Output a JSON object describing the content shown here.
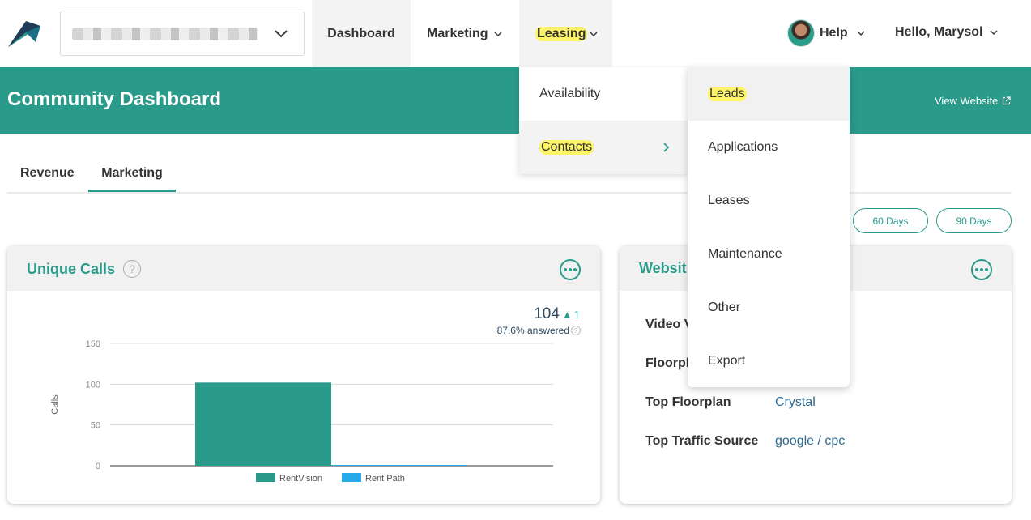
{
  "nav": {
    "dashboard": "Dashboard",
    "marketing": "Marketing",
    "leasing": "Leasing",
    "help": "Help",
    "hello": "Hello, Marysol"
  },
  "banner": {
    "title": "Community Dashboard",
    "view_website": "View Website"
  },
  "tabs": {
    "revenue": "Revenue",
    "marketing": "Marketing"
  },
  "ranges": {
    "d60": "60 Days",
    "d90": "90 Days"
  },
  "calls_card": {
    "title": "Unique Calls",
    "total": "104",
    "delta": "1",
    "answered": "87.6% answered"
  },
  "website_card": {
    "title": "Websit",
    "rows": [
      {
        "label": "Video V",
        "value": ""
      },
      {
        "label": "Floorpl",
        "value": ""
      },
      {
        "label": "Top Floorplan",
        "value": "Crystal"
      },
      {
        "label": "Top Traffic Source",
        "value": "google / cpc"
      }
    ]
  },
  "leasing_menu": {
    "items": [
      "Availability",
      "Contacts"
    ]
  },
  "contacts_menu": {
    "items": [
      "Leads",
      "Applications",
      "Leases",
      "Maintenance",
      "Other",
      "Export"
    ]
  },
  "colors": {
    "brand": "#2a9a8a",
    "highlight": "#fdf468",
    "bar_rentvision": "#2a9a8a",
    "bar_rentpath": "#29a8e8"
  },
  "chart_data": {
    "type": "bar",
    "title": "",
    "xlabel": "",
    "ylabel": "Calls",
    "ylim": [
      0,
      150
    ],
    "yticks": [
      0,
      50,
      100,
      150
    ],
    "series": [
      {
        "name": "RentVision",
        "values": [
          102
        ]
      },
      {
        "name": "Rent Path",
        "values": [
          1
        ]
      }
    ],
    "legend": "bottom"
  }
}
